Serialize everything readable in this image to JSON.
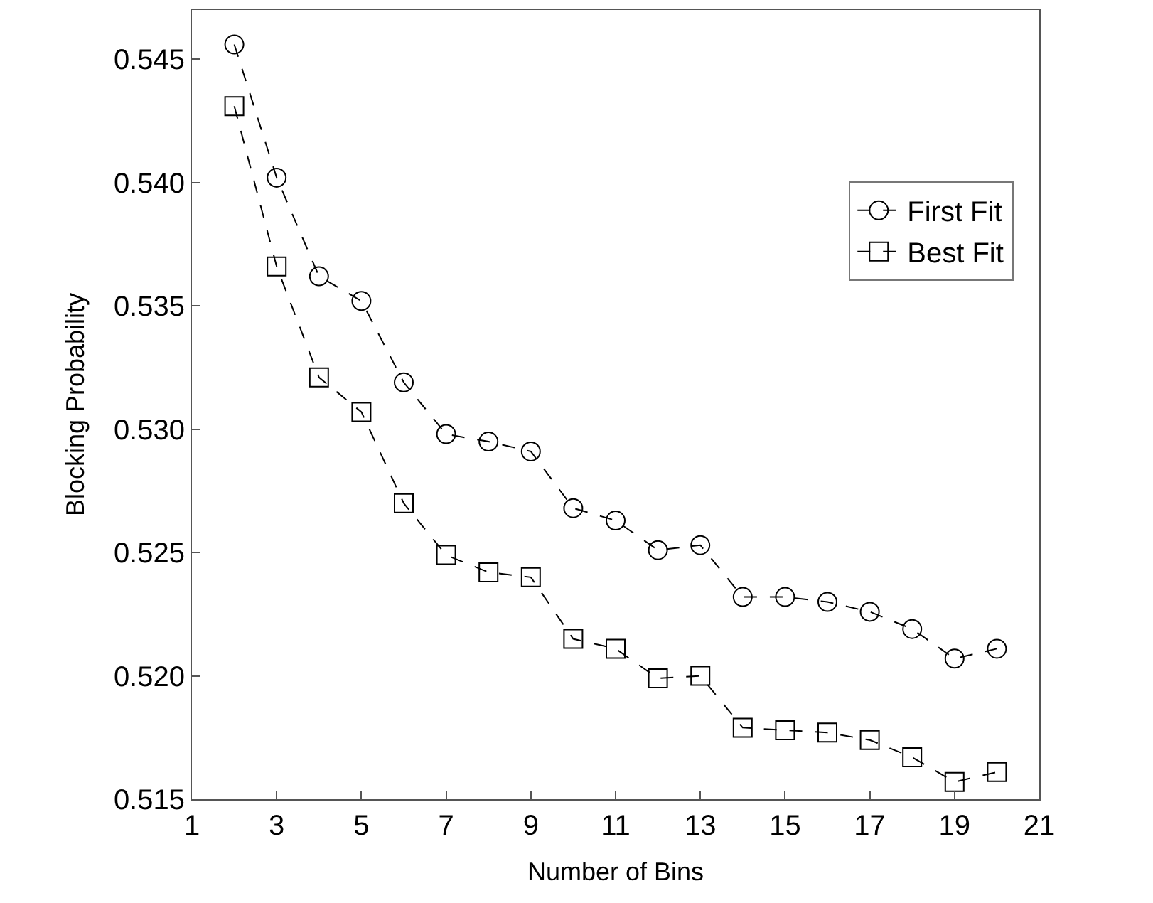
{
  "chart_data": {
    "type": "line",
    "xlabel": "Number of Bins",
    "ylabel": "Blocking Probability",
    "x": [
      2,
      3,
      4,
      5,
      6,
      7,
      8,
      9,
      10,
      11,
      12,
      13,
      14,
      15,
      16,
      17,
      18,
      19,
      20
    ],
    "series": [
      {
        "name": "First Fit",
        "color": "#000000",
        "marker": "circle",
        "values": [
          0.5456,
          0.5402,
          0.5362,
          0.5352,
          0.5319,
          0.5298,
          0.5295,
          0.5291,
          0.5268,
          0.5263,
          0.5251,
          0.5253,
          0.5232,
          0.5232,
          0.523,
          0.5226,
          0.5219,
          0.5207,
          0.5211
        ]
      },
      {
        "name": "Best Fit",
        "color": "#000000",
        "marker": "square",
        "values": [
          0.5431,
          0.5366,
          0.5321,
          0.5307,
          0.527,
          0.5249,
          0.5242,
          0.524,
          0.5215,
          0.5211,
          0.5199,
          0.52,
          0.5179,
          0.5178,
          0.5177,
          0.5174,
          0.5167,
          0.5157,
          0.5161
        ]
      }
    ],
    "line_style": "dashed",
    "legend": "right",
    "xlim": [
      1,
      21
    ],
    "xticks": [
      1,
      3,
      5,
      7,
      9,
      11,
      13,
      15,
      17,
      19,
      21
    ],
    "ylim": [
      0.515,
      0.547
    ],
    "yticks": [
      {
        "value": 0.515,
        "label": "0.515"
      },
      {
        "value": 0.52,
        "label": "0.520"
      },
      {
        "value": 0.525,
        "label": "0.525"
      },
      {
        "value": 0.53,
        "label": "0.530"
      },
      {
        "value": 0.535,
        "label": "0.535"
      },
      {
        "value": 0.54,
        "label": "0.540"
      },
      {
        "value": 0.545,
        "label": "0.545"
      }
    ]
  }
}
